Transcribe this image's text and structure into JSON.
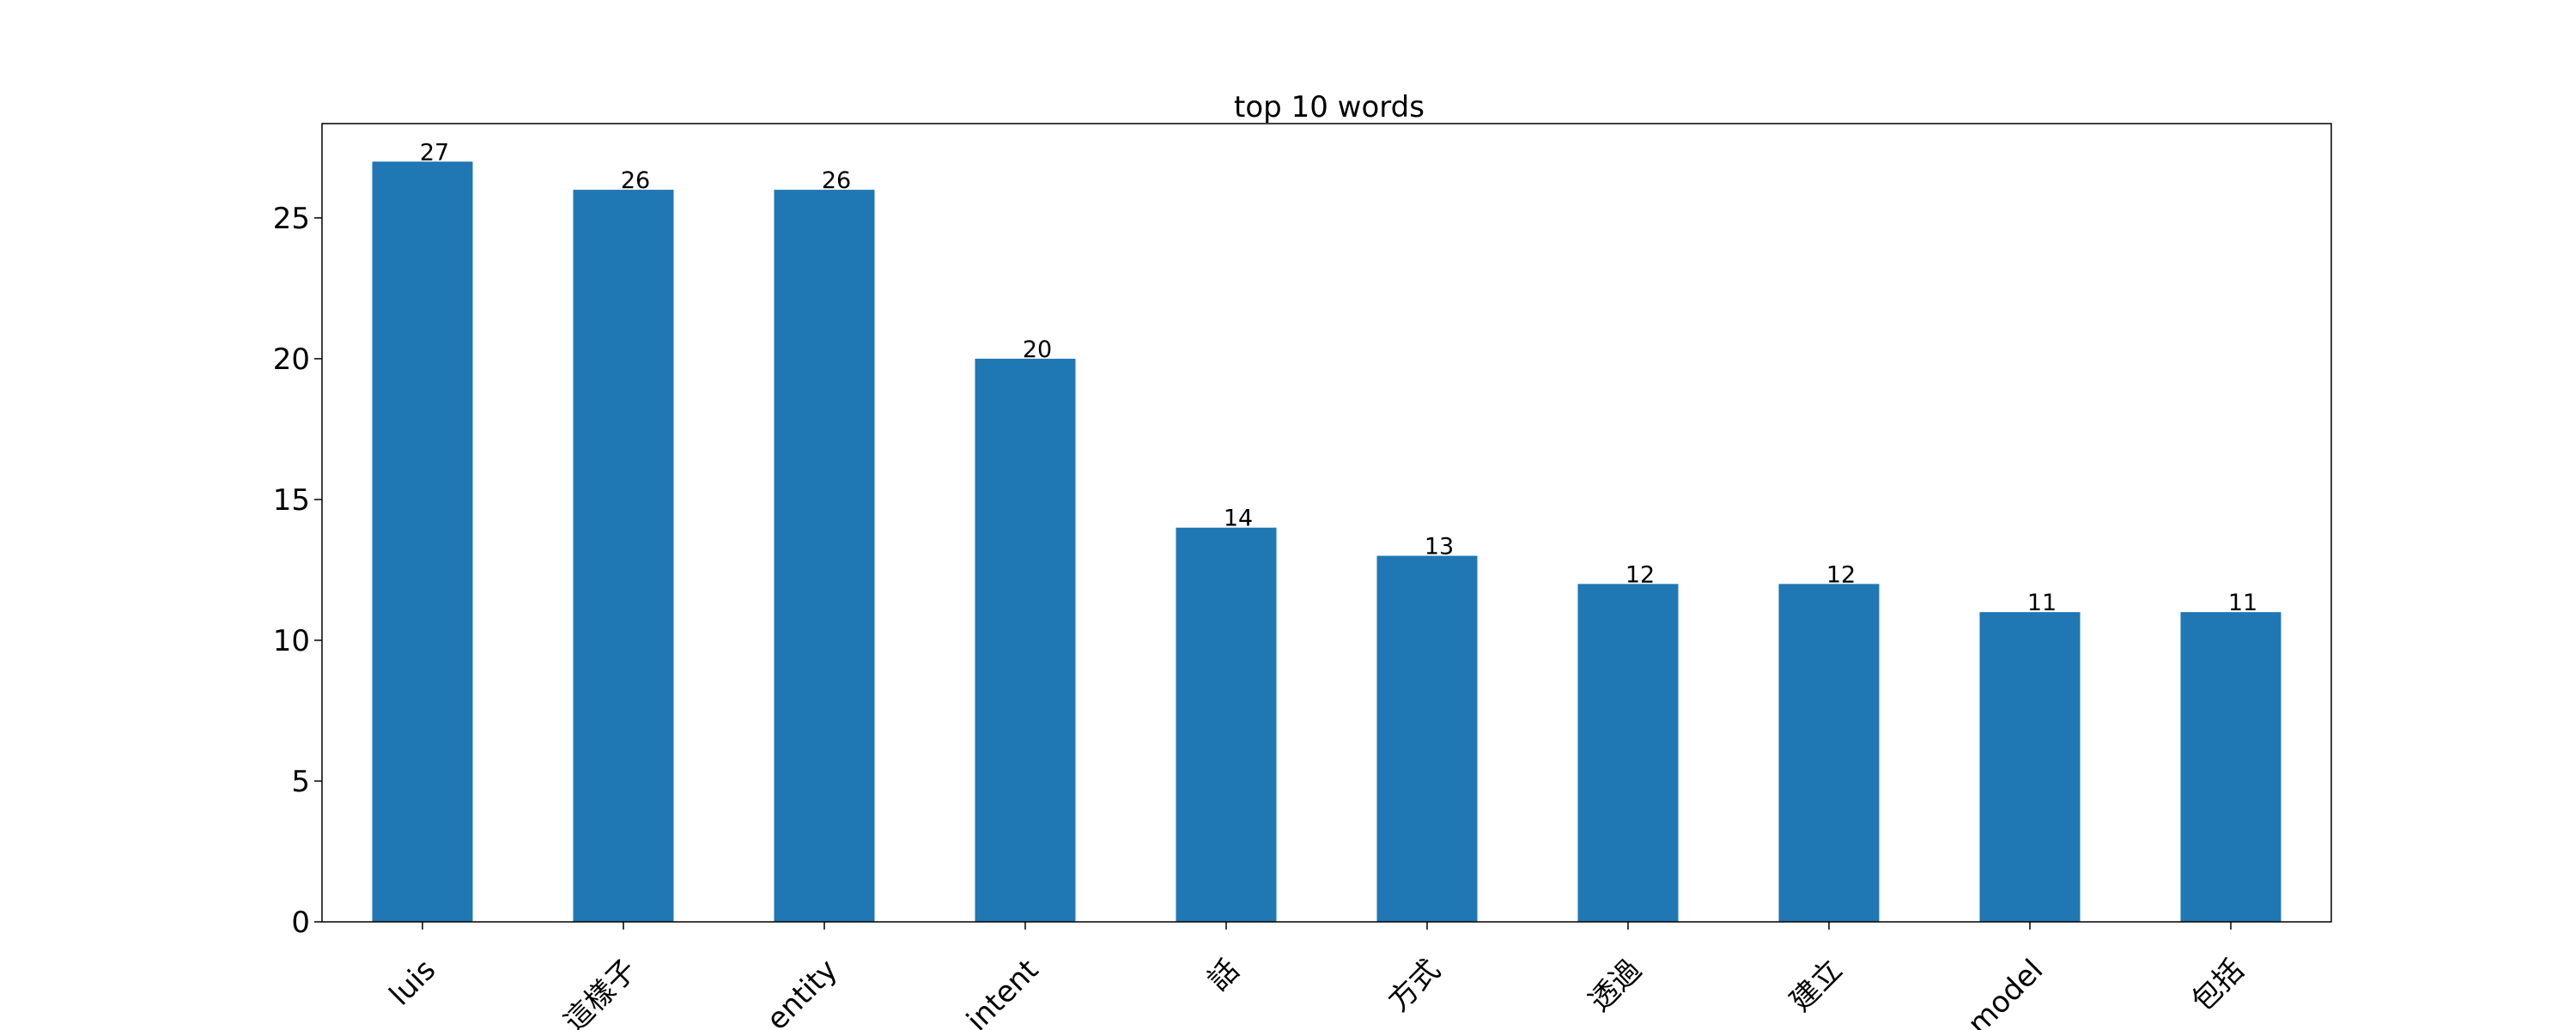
{
  "chart_data": {
    "type": "bar",
    "title": "top 10 words",
    "xlabel": "",
    "ylabel": "",
    "categories": [
      "luis",
      "這樣子",
      "entity",
      "intent",
      "話",
      "方式",
      "透過",
      "建立",
      "model",
      "包括"
    ],
    "values": [
      27,
      26,
      26,
      20,
      14,
      13,
      12,
      12,
      11,
      11
    ],
    "ylim": [
      0,
      28.35
    ],
    "yticks": [
      0,
      5,
      10,
      15,
      20,
      25
    ],
    "bar_color": "#1f77b4",
    "grid": false,
    "legend": "none",
    "xtick_rotation_deg": 45
  }
}
